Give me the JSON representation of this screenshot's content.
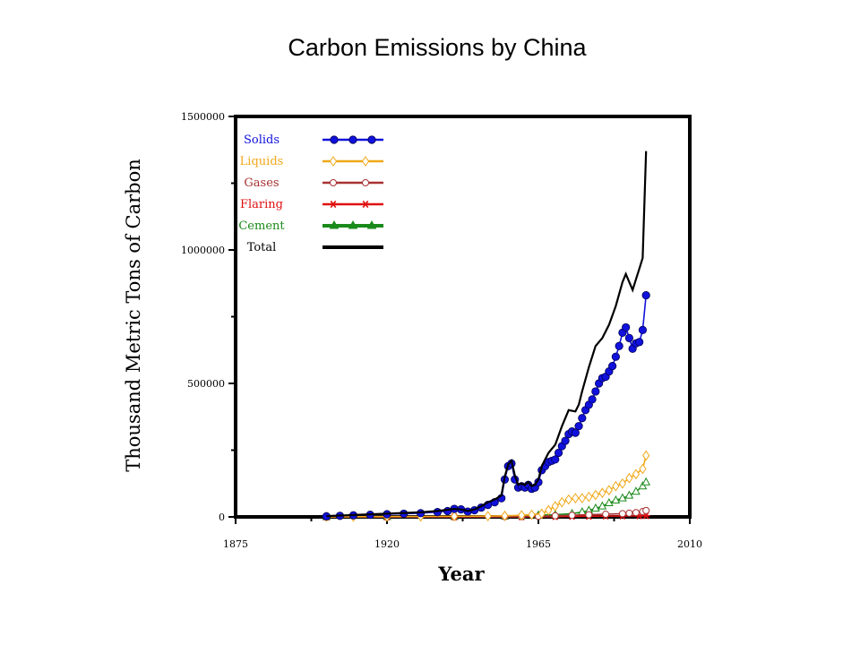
{
  "page": {
    "title": "Carbon Emissions by China"
  },
  "colors": {
    "solids": "#1111dd",
    "liquids": "#f0a818",
    "gases": "#a83232",
    "flaring": "#e01010",
    "cement": "#1a8a1a",
    "total": "#000000"
  },
  "chart_data": {
    "type": "line",
    "title": "Carbon Emissions by China",
    "xlabel": "Year",
    "ylabel": "Thousand Metric Tons of Carbon",
    "xlim": [
      1875,
      2010
    ],
    "ylim": [
      0,
      1500000
    ],
    "x_ticks": [
      1875,
      1920,
      1965,
      2010
    ],
    "x_tick_labels": [
      "1875",
      "1920",
      "1965",
      "2010"
    ],
    "y_ticks": [
      0,
      500000,
      1000000,
      1500000
    ],
    "y_tick_labels": [
      "0",
      "500000",
      "1000000",
      "1500000"
    ],
    "legend_position": "top-left",
    "grid": false,
    "series": [
      {
        "key": "solids",
        "name": "Solids",
        "marker": "filled-circle",
        "x": [
          1902,
          1906,
          1910,
          1915,
          1920,
          1925,
          1930,
          1935,
          1938,
          1940,
          1942,
          1944,
          1946,
          1948,
          1950,
          1952,
          1954,
          1955,
          1956,
          1957,
          1958,
          1959,
          1960,
          1961,
          1962,
          1963,
          1964,
          1965,
          1966,
          1967,
          1968,
          1969,
          1970,
          1971,
          1972,
          1973,
          1974,
          1975,
          1976,
          1977,
          1978,
          1979,
          1980,
          1981,
          1982,
          1983,
          1984,
          1985,
          1986,
          1987,
          1988,
          1989,
          1990,
          1991,
          1992,
          1993,
          1994,
          1995,
          1996,
          1997
        ],
        "values": [
          2000,
          4000,
          6000,
          8000,
          10000,
          12000,
          14000,
          18000,
          22000,
          30000,
          28000,
          20000,
          25000,
          35000,
          45000,
          55000,
          70000,
          140000,
          190000,
          200000,
          140000,
          110000,
          115000,
          110000,
          120000,
          105000,
          110000,
          130000,
          175000,
          190000,
          205000,
          210000,
          215000,
          240000,
          265000,
          285000,
          310000,
          320000,
          315000,
          340000,
          370000,
          400000,
          420000,
          440000,
          470000,
          500000,
          520000,
          525000,
          545000,
          565000,
          600000,
          640000,
          690000,
          710000,
          670000,
          630000,
          650000,
          655000,
          700000,
          830000
        ]
      },
      {
        "key": "liquids",
        "name": "Liquids",
        "marker": "open-diamond",
        "x": [
          1902,
          1910,
          1920,
          1930,
          1940,
          1950,
          1955,
          1960,
          1963,
          1966,
          1968,
          1970,
          1972,
          1974,
          1976,
          1978,
          1980,
          1982,
          1984,
          1986,
          1988,
          1990,
          1992,
          1994,
          1996,
          1997
        ],
        "values": [
          500,
          800,
          1200,
          1800,
          2500,
          3000,
          4000,
          6000,
          8000,
          12000,
          25000,
          40000,
          55000,
          65000,
          70000,
          70000,
          75000,
          82000,
          90000,
          100000,
          115000,
          125000,
          145000,
          160000,
          180000,
          230000
        ]
      },
      {
        "key": "gases",
        "name": "Gases",
        "marker": "open-circle",
        "x": [
          1902,
          1920,
          1940,
          1955,
          1960,
          1965,
          1970,
          1975,
          1980,
          1985,
          1990,
          1992,
          1994,
          1996,
          1997
        ],
        "values": [
          0,
          0,
          100,
          500,
          1000,
          2000,
          4000,
          6000,
          8000,
          10000,
          12000,
          14000,
          16000,
          20000,
          24000
        ]
      },
      {
        "key": "flaring",
        "name": "Flaring",
        "marker": "asterisk",
        "x": [
          1902,
          1920,
          1940,
          1960,
          1970,
          1975,
          1980,
          1985,
          1990,
          1995,
          1997
        ],
        "values": [
          0,
          0,
          0,
          200,
          1000,
          2000,
          2500,
          3000,
          3500,
          4000,
          4500
        ]
      },
      {
        "key": "cement",
        "name": "Cement",
        "marker": "open-triangle",
        "x": [
          1902,
          1920,
          1940,
          1955,
          1960,
          1965,
          1970,
          1975,
          1978,
          1980,
          1982,
          1984,
          1986,
          1988,
          1990,
          1992,
          1994,
          1996,
          1997
        ],
        "values": [
          0,
          300,
          1000,
          2000,
          4000,
          6000,
          8000,
          12000,
          18000,
          24000,
          32000,
          40000,
          52000,
          62000,
          70000,
          80000,
          95000,
          115000,
          130000
        ]
      },
      {
        "key": "total",
        "name": "Total",
        "marker": "none",
        "x": [
          1902,
          1910,
          1920,
          1930,
          1935,
          1940,
          1942,
          1944,
          1946,
          1948,
          1950,
          1952,
          1954,
          1955,
          1956,
          1957,
          1958,
          1959,
          1960,
          1961,
          1962,
          1963,
          1964,
          1965,
          1966,
          1967,
          1968,
          1969,
          1970,
          1972,
          1974,
          1976,
          1977,
          1978,
          1980,
          1982,
          1984,
          1986,
          1988,
          1990,
          1991,
          1992,
          1993,
          1994,
          1995,
          1996,
          1997
        ],
        "values": [
          3000,
          7000,
          12000,
          17000,
          22000,
          30000,
          28000,
          22000,
          28000,
          40000,
          55000,
          65000,
          80000,
          150000,
          195000,
          210000,
          155000,
          120000,
          125000,
          120000,
          130000,
          115000,
          120000,
          140000,
          190000,
          215000,
          240000,
          255000,
          270000,
          340000,
          400000,
          395000,
          420000,
          470000,
          560000,
          640000,
          670000,
          720000,
          790000,
          880000,
          910000,
          880000,
          850000,
          890000,
          930000,
          970000,
          1370000
        ]
      }
    ]
  }
}
